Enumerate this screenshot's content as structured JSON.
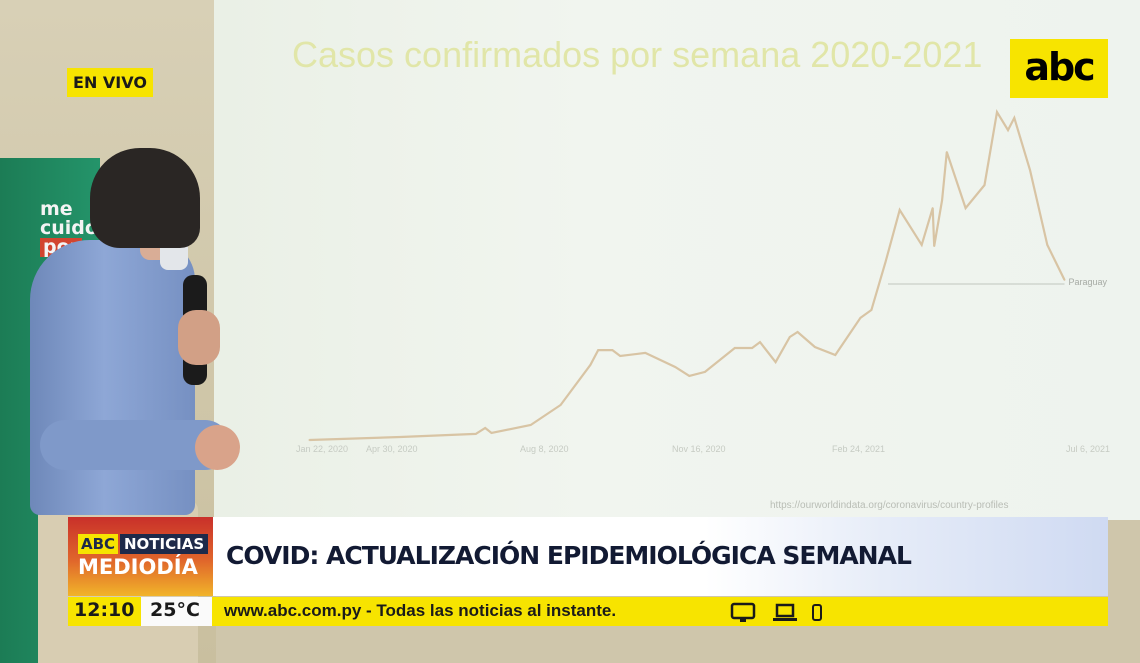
{
  "broadcast": {
    "live_badge": "EN VIVO",
    "channel_logo": "abc",
    "program_tag_abc": "ABC",
    "program_tag_noticias": "NOTICIAS",
    "program_name": "MEDIODÍA",
    "headline": "COVID: ACTUALIZACIÓN EPIDEMIOLÓGICA SEMANAL",
    "time": "12:10",
    "temperature": "25°C",
    "ticker": "www.abc.com.py - Todas las noticias al instante.",
    "ticker_icons": [
      "tv-icon",
      "laptop-icon",
      "phone-icon"
    ],
    "colors": {
      "brand_yellow": "#f7e400",
      "navy": "#1e2a4a",
      "brand_red": "#c9302a"
    }
  },
  "backdrop": {
    "banner_text": [
      "me",
      "cuido",
      "por"
    ]
  },
  "slide": {
    "title": "Casos confirmados por semana 2020-2021",
    "series_label": "Paraguay",
    "source": "https://ourworldindata.org/coronavirus/country-profiles",
    "x_tick_labels": [
      "Jan 22, 2020",
      "Apr 30, 2020",
      "Aug 8, 2020",
      "Nov 16, 2020",
      "Feb 24, 2021",
      "Jul 6, 2021"
    ]
  },
  "chart_data": {
    "type": "line",
    "title": "Casos confirmados por semana 2020-2021",
    "xlabel": "",
    "ylabel": "",
    "grid": false,
    "legend": "end-of-line label",
    "line_color": "#d8c4a4",
    "series": [
      {
        "name": "Paraguay",
        "x": [
          "2020-03-09",
          "2020-05-06",
          "2020-06-23",
          "2020-06-29",
          "2020-07-03",
          "2020-07-28",
          "2020-08-16",
          "2020-09-04",
          "2020-09-09",
          "2020-09-18",
          "2020-09-23",
          "2020-10-09",
          "2020-10-28",
          "2020-11-06",
          "2020-11-16",
          "2020-12-05",
          "2020-12-16",
          "2020-12-21",
          "2020-12-31",
          "2021-01-09",
          "2021-01-14",
          "2021-01-25",
          "2021-02-07",
          "2021-02-23",
          "2021-03-02",
          "2021-03-11",
          "2021-03-20",
          "2021-04-03",
          "2021-04-10",
          "2021-04-11",
          "2021-04-16",
          "2021-04-19",
          "2021-05-01",
          "2021-05-13",
          "2021-05-21",
          "2021-05-28",
          "2021-06-01",
          "2021-06-11",
          "2021-06-22",
          "2021-07-03"
        ],
        "values": [
          0,
          160,
          320,
          630,
          370,
          790,
          1840,
          3950,
          4730,
          4730,
          4420,
          4580,
          3840,
          3370,
          3580,
          4840,
          4840,
          5150,
          4100,
          5420,
          5680,
          4890,
          4470,
          6420,
          6840,
          9360,
          12100,
          10260,
          12200,
          10200,
          12620,
          15150,
          12200,
          13410,
          17250,
          16300,
          16940,
          14200,
          10260,
          8420
        ]
      }
    ],
    "x_ticks": [
      "2020-01-22",
      "2020-04-30",
      "2020-08-08",
      "2020-11-16",
      "2021-02-24",
      "2021-07-06"
    ],
    "ylim": [
      0,
      18000
    ]
  }
}
